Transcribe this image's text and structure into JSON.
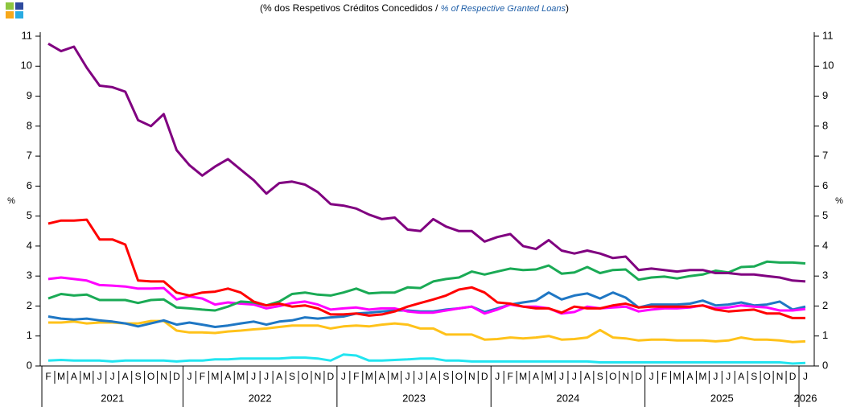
{
  "chart_data": {
    "type": "line",
    "subtitle": [
      "(% dos Respetivos  Créditos Concedidos / ",
      "% of Respective Granted Loans",
      ")"
    ],
    "ylabel": "%",
    "categories": [
      "F",
      "M",
      "A",
      "M",
      "J",
      "J",
      "A",
      "S",
      "O",
      "N",
      "D",
      "J",
      "F",
      "M",
      "A",
      "M",
      "J",
      "J",
      "A",
      "S",
      "O",
      "N",
      "D",
      "J",
      "F",
      "M",
      "A",
      "M",
      "J",
      "J",
      "A",
      "S",
      "O",
      "N",
      "D",
      "J",
      "F",
      "M",
      "A",
      "M",
      "J",
      "J",
      "A",
      "S",
      "O",
      "N",
      "D",
      "J",
      "F",
      "M",
      "A",
      "M",
      "J",
      "J",
      "A",
      "S",
      "O",
      "N",
      "D",
      "J"
    ],
    "years": [
      "2021",
      "2022",
      "2023",
      "2024",
      "2025",
      "2026"
    ],
    "ylim": [
      0,
      11
    ],
    "yticks": [
      0,
      1,
      2,
      3,
      4,
      5,
      6,
      7,
      8,
      9,
      10,
      11
    ],
    "series": [
      {
        "color": "#800080",
        "values": [
          10.75,
          10.5,
          10.65,
          9.95,
          9.35,
          9.3,
          9.15,
          8.2,
          8.0,
          8.4,
          7.2,
          6.7,
          6.35,
          6.65,
          6.9,
          6.55,
          6.2,
          5.75,
          6.1,
          6.15,
          6.05,
          5.8,
          5.4,
          5.35,
          5.25,
          5.05,
          4.9,
          4.95,
          4.55,
          4.5,
          4.9,
          4.65,
          4.5,
          4.5,
          4.15,
          4.3,
          4.4,
          4.0,
          3.9,
          4.2,
          3.85,
          3.75,
          3.85,
          3.75,
          3.6,
          3.65,
          3.2,
          3.25,
          3.2,
          3.15,
          3.2,
          3.2,
          3.1,
          3.1,
          3.05,
          3.05,
          3.0,
          2.95,
          2.85,
          2.82
        ]
      },
      {
        "color": "#ff0000",
        "values": [
          4.75,
          4.85,
          4.85,
          4.88,
          4.22,
          4.22,
          4.05,
          2.85,
          2.82,
          2.82,
          2.45,
          2.35,
          2.45,
          2.48,
          2.58,
          2.45,
          2.15,
          2.02,
          2.08,
          1.98,
          2.02,
          1.92,
          1.72,
          1.72,
          1.75,
          1.68,
          1.72,
          1.82,
          1.98,
          2.1,
          2.22,
          2.35,
          2.55,
          2.62,
          2.45,
          2.12,
          2.08,
          1.98,
          1.92,
          1.92,
          1.78,
          1.98,
          1.92,
          1.92,
          2.02,
          2.08,
          1.95,
          1.98,
          1.98,
          1.98,
          1.98,
          2.02,
          1.88,
          1.82,
          1.85,
          1.88,
          1.75,
          1.75,
          1.6,
          1.6
        ]
      },
      {
        "color": "#1aaa55",
        "values": [
          2.25,
          2.4,
          2.35,
          2.38,
          2.2,
          2.2,
          2.2,
          2.1,
          2.2,
          2.22,
          1.95,
          1.92,
          1.88,
          1.85,
          1.98,
          2.15,
          2.12,
          2.02,
          2.15,
          2.4,
          2.45,
          2.38,
          2.35,
          2.45,
          2.58,
          2.42,
          2.45,
          2.45,
          2.62,
          2.6,
          2.82,
          2.9,
          2.95,
          3.15,
          3.05,
          3.15,
          3.25,
          3.2,
          3.22,
          3.35,
          3.08,
          3.12,
          3.3,
          3.1,
          3.2,
          3.22,
          2.88,
          2.95,
          2.98,
          2.92,
          3.0,
          3.05,
          3.18,
          3.12,
          3.3,
          3.32,
          3.48,
          3.45,
          3.45,
          3.42
        ]
      },
      {
        "color": "#ff00ff",
        "values": [
          2.9,
          2.95,
          2.9,
          2.85,
          2.7,
          2.68,
          2.65,
          2.58,
          2.58,
          2.6,
          2.22,
          2.32,
          2.25,
          2.05,
          2.12,
          2.08,
          2.05,
          1.92,
          2.0,
          2.1,
          2.15,
          2.05,
          1.88,
          1.92,
          1.95,
          1.88,
          1.92,
          1.92,
          1.82,
          1.78,
          1.78,
          1.85,
          1.92,
          1.98,
          1.75,
          1.88,
          2.05,
          1.98,
          1.98,
          1.92,
          1.75,
          1.8,
          1.98,
          1.92,
          1.95,
          1.98,
          1.82,
          1.88,
          1.92,
          1.92,
          1.95,
          2.02,
          1.92,
          1.95,
          2.02,
          1.98,
          1.95,
          1.85,
          1.85,
          1.9
        ]
      },
      {
        "color": "#1f77c4",
        "values": [
          1.65,
          1.58,
          1.55,
          1.58,
          1.52,
          1.48,
          1.42,
          1.32,
          1.42,
          1.52,
          1.38,
          1.45,
          1.38,
          1.3,
          1.35,
          1.42,
          1.48,
          1.38,
          1.48,
          1.52,
          1.62,
          1.58,
          1.62,
          1.65,
          1.75,
          1.78,
          1.82,
          1.85,
          1.85,
          1.82,
          1.82,
          1.88,
          1.92,
          1.98,
          1.8,
          1.92,
          2.05,
          2.12,
          2.18,
          2.45,
          2.22,
          2.35,
          2.42,
          2.25,
          2.45,
          2.28,
          1.95,
          2.05,
          2.05,
          2.05,
          2.08,
          2.18,
          2.02,
          2.05,
          2.12,
          2.02,
          2.05,
          2.15,
          1.88,
          1.98
        ]
      },
      {
        "color": "#ffc21a",
        "values": [
          1.45,
          1.45,
          1.48,
          1.42,
          1.45,
          1.45,
          1.42,
          1.42,
          1.5,
          1.5,
          1.18,
          1.12,
          1.12,
          1.1,
          1.15,
          1.18,
          1.22,
          1.25,
          1.3,
          1.35,
          1.35,
          1.35,
          1.25,
          1.32,
          1.35,
          1.32,
          1.38,
          1.42,
          1.38,
          1.25,
          1.25,
          1.05,
          1.05,
          1.05,
          0.88,
          0.9,
          0.95,
          0.92,
          0.95,
          1.0,
          0.88,
          0.9,
          0.95,
          1.2,
          0.95,
          0.92,
          0.85,
          0.88,
          0.88,
          0.85,
          0.85,
          0.85,
          0.82,
          0.85,
          0.95,
          0.88,
          0.88,
          0.85,
          0.8,
          0.82
        ]
      },
      {
        "color": "#22e5f0",
        "values": [
          0.18,
          0.2,
          0.18,
          0.18,
          0.18,
          0.15,
          0.18,
          0.18,
          0.18,
          0.18,
          0.15,
          0.18,
          0.18,
          0.22,
          0.22,
          0.25,
          0.25,
          0.25,
          0.25,
          0.28,
          0.28,
          0.25,
          0.18,
          0.38,
          0.35,
          0.18,
          0.18,
          0.2,
          0.22,
          0.25,
          0.25,
          0.18,
          0.18,
          0.15,
          0.15,
          0.15,
          0.15,
          0.15,
          0.15,
          0.15,
          0.15,
          0.15,
          0.15,
          0.12,
          0.12,
          0.12,
          0.12,
          0.12,
          0.12,
          0.12,
          0.12,
          0.12,
          0.12,
          0.12,
          0.12,
          0.12,
          0.12,
          0.12,
          0.08,
          0.1
        ]
      }
    ]
  }
}
